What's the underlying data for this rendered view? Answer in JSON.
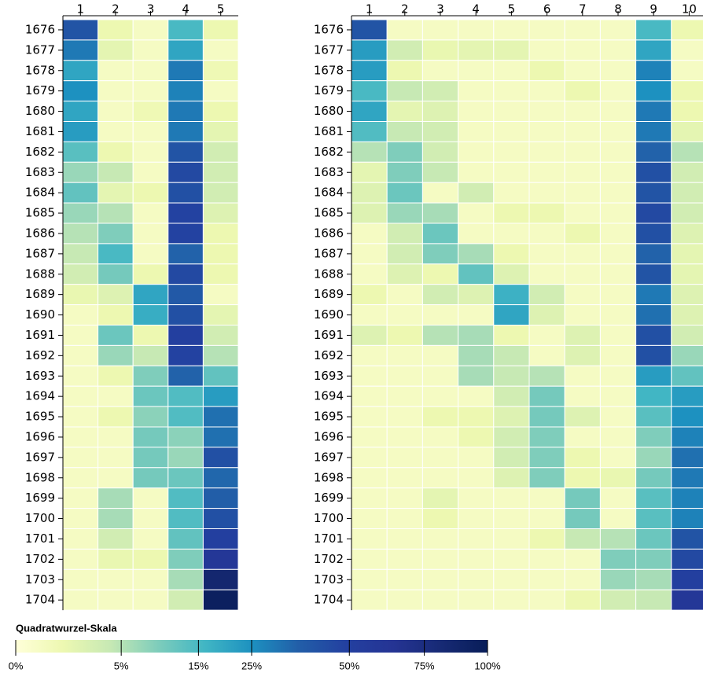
{
  "chart_data": [
    {
      "type": "heatmap",
      "x": [
        1,
        2,
        3,
        4,
        5
      ],
      "y": [
        1676,
        1677,
        1678,
        1679,
        1680,
        1681,
        1682,
        1683,
        1684,
        1685,
        1686,
        1687,
        1688,
        1689,
        1690,
        1691,
        1692,
        1693,
        1694,
        1695,
        1696,
        1697,
        1698,
        1699,
        1700,
        1701,
        1702,
        1703,
        1704
      ],
      "values": [
        [
          40,
          1,
          0.3,
          15,
          1
        ],
        [
          30,
          1.5,
          0.3,
          20,
          0.3
        ],
        [
          20,
          0.3,
          0.3,
          30,
          0.8
        ],
        [
          25,
          0.3,
          0.3,
          28,
          0.3
        ],
        [
          20,
          0.3,
          0.8,
          30,
          1
        ],
        [
          22,
          0.3,
          0.3,
          30,
          1.5
        ],
        [
          13,
          1,
          0.3,
          40,
          3
        ],
        [
          7,
          4,
          0.3,
          45,
          3
        ],
        [
          12,
          1.5,
          1,
          42,
          3
        ],
        [
          7,
          5,
          0.3,
          48,
          2
        ],
        [
          5,
          9,
          0.3,
          48,
          1
        ],
        [
          4,
          15,
          0.3,
          35,
          1
        ],
        [
          3,
          10,
          1,
          45,
          1
        ],
        [
          1.2,
          2,
          20,
          38,
          0.3
        ],
        [
          0.3,
          1,
          18,
          42,
          1.5
        ],
        [
          0.3,
          11,
          1,
          50,
          3
        ],
        [
          0.3,
          7,
          4,
          48,
          5
        ],
        [
          0.3,
          1,
          9,
          35,
          12
        ],
        [
          0.3,
          0.3,
          11,
          14,
          22
        ],
        [
          0.3,
          1,
          8,
          14,
          32
        ],
        [
          0.3,
          0.3,
          10,
          8,
          32
        ],
        [
          0.3,
          0.3,
          10,
          7,
          42
        ],
        [
          0.3,
          0.3,
          10,
          11,
          34
        ],
        [
          0.3,
          6,
          0.3,
          14,
          36
        ],
        [
          0.3,
          6,
          0.3,
          14,
          42
        ],
        [
          0.3,
          3,
          0.3,
          12,
          50
        ],
        [
          0.3,
          1.2,
          1,
          9,
          60
        ],
        [
          0.3,
          0.3,
          0.3,
          6,
          85
        ],
        [
          0.3,
          0.3,
          0.3,
          3,
          95
        ]
      ]
    },
    {
      "type": "heatmap",
      "x": [
        1,
        2,
        3,
        4,
        5,
        6,
        7,
        8,
        9,
        10
      ],
      "y": [
        1676,
        1677,
        1678,
        1679,
        1680,
        1681,
        1682,
        1683,
        1684,
        1685,
        1686,
        1687,
        1688,
        1689,
        1690,
        1691,
        1692,
        1693,
        1694,
        1695,
        1696,
        1697,
        1698,
        1699,
        1700,
        1701,
        1702,
        1703,
        1704
      ],
      "values": [
        [
          40,
          0.3,
          0.3,
          0.3,
          0.3,
          0.3,
          0.3,
          0.3,
          15,
          1
        ],
        [
          22,
          3,
          1.2,
          1.5,
          1.5,
          0.3,
          0.3,
          0.3,
          20,
          0.3
        ],
        [
          22,
          1,
          0.3,
          0.3,
          0.3,
          1,
          0.3,
          0.3,
          28,
          0.3
        ],
        [
          15,
          4,
          3,
          0.3,
          0.3,
          0.3,
          1,
          0.3,
          25,
          1
        ],
        [
          20,
          1.5,
          2,
          0.3,
          0.3,
          0.3,
          0.3,
          0.3,
          30,
          1
        ],
        [
          14,
          4,
          3,
          0.3,
          0.3,
          0.3,
          0.3,
          0.3,
          30,
          1.5
        ],
        [
          5,
          9,
          3,
          0.3,
          0.3,
          0.3,
          0.3,
          0.3,
          35,
          5
        ],
        [
          1.5,
          9,
          4,
          0.3,
          0.3,
          0.3,
          0.3,
          0.3,
          42,
          3
        ],
        [
          2,
          11,
          0.3,
          3,
          0.3,
          0.3,
          0.3,
          0.3,
          40,
          3
        ],
        [
          2,
          7,
          6,
          0.3,
          1,
          1,
          0.3,
          0.3,
          45,
          3
        ],
        [
          0.3,
          3,
          11,
          0.3,
          0.3,
          0.3,
          1,
          0.3,
          42,
          2
        ],
        [
          0.3,
          3,
          9,
          6,
          1,
          0.3,
          0.3,
          0.3,
          35,
          1.5
        ],
        [
          0.3,
          2,
          1,
          12,
          2,
          0.3,
          0.3,
          0.3,
          40,
          1.5
        ],
        [
          1,
          0.3,
          3,
          2,
          17,
          3,
          0.3,
          0.3,
          30,
          2
        ],
        [
          0.3,
          0.3,
          0.3,
          0.3,
          20,
          2,
          0.3,
          0.3,
          32,
          2
        ],
        [
          2,
          1,
          5,
          6,
          1,
          0.3,
          2,
          0.3,
          42,
          3
        ],
        [
          0.3,
          0.3,
          0.3,
          6,
          4,
          0.3,
          2,
          0.3,
          42,
          7
        ],
        [
          0.3,
          0.3,
          0.3,
          6,
          4,
          5,
          0.3,
          0.3,
          22,
          12
        ],
        [
          0.3,
          0.3,
          0.3,
          0.3,
          3,
          10,
          0.3,
          0.3,
          16,
          22
        ],
        [
          0.3,
          0.3,
          1,
          1,
          2,
          10,
          2,
          0.3,
          13,
          25
        ],
        [
          0.3,
          0.3,
          0.3,
          1,
          3,
          9,
          0.3,
          0.3,
          9,
          28
        ],
        [
          0.3,
          0.3,
          0.3,
          0.3,
          3,
          9,
          1,
          0.3,
          7,
          32
        ],
        [
          0.3,
          0.3,
          0.3,
          0.3,
          2,
          9,
          1,
          1.2,
          10,
          30
        ],
        [
          0.3,
          0.3,
          1.5,
          0.3,
          0.3,
          0.3,
          10,
          0.3,
          13,
          28
        ],
        [
          0.3,
          0.3,
          1,
          0.3,
          0.3,
          0.3,
          10,
          0.3,
          13,
          28
        ],
        [
          0.3,
          0.3,
          0.3,
          0.3,
          0.3,
          1,
          4,
          5,
          11,
          40
        ],
        [
          0.3,
          0.3,
          0.3,
          0.3,
          0.3,
          0.3,
          0.3,
          9,
          9,
          45
        ],
        [
          0.3,
          0.3,
          0.3,
          0.3,
          0.3,
          0.3,
          0.3,
          7,
          6,
          50
        ],
        [
          0.3,
          0.3,
          0.3,
          0.3,
          0.3,
          0.3,
          1,
          3,
          4,
          60
        ]
      ]
    },
    {
      "type": "colorbar",
      "title": "Quadratwurzel-Skala",
      "scale": "sqrt",
      "lim": [
        0,
        100
      ],
      "ticks": [
        {
          "value": 0,
          "label": "0%"
        },
        {
          "value": 5,
          "label": "5%"
        },
        {
          "value": 15,
          "label": "15%"
        },
        {
          "value": 25,
          "label": "25%"
        },
        {
          "value": 50,
          "label": "50%"
        },
        {
          "value": 75,
          "label": "75%"
        },
        {
          "value": 100,
          "label": "100%"
        }
      ],
      "colors": [
        "#ffffd9",
        "#edf8b1",
        "#c7e9b4",
        "#7fcdbb",
        "#41b6c4",
        "#1d91c0",
        "#225ea8",
        "#2340a0",
        "#253494",
        "#172a75",
        "#081d58"
      ]
    }
  ]
}
